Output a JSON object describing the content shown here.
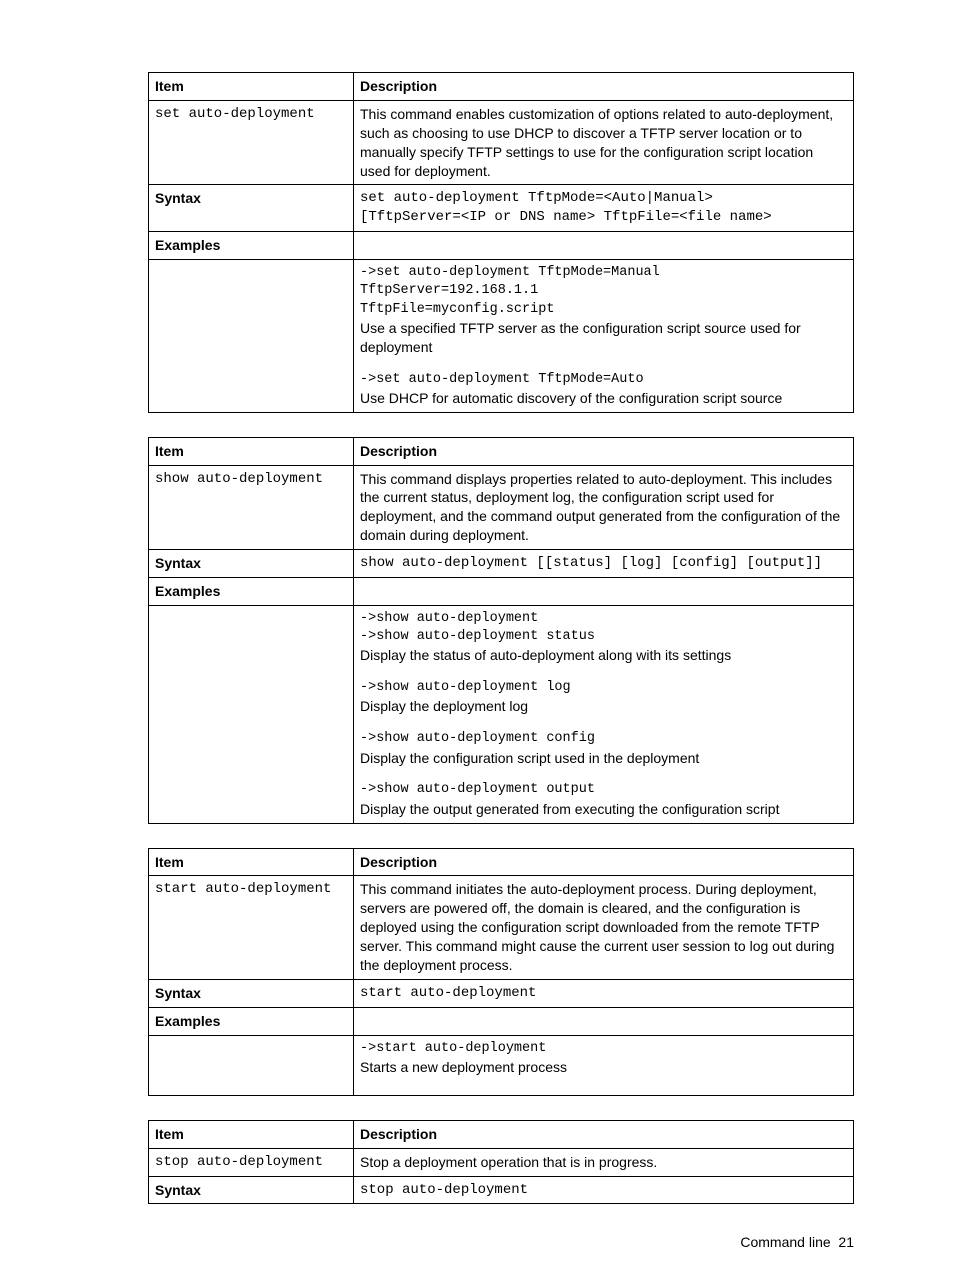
{
  "headers": {
    "item": "Item",
    "description": "Description",
    "syntax": "Syntax",
    "examples": "Examples"
  },
  "table1": {
    "cmd": "set auto-deployment",
    "desc": "This command enables customization of options related to auto-deployment, such as choosing to use DHCP to discover a TFTP server location or to manually specify TFTP settings to use for the configuration script location used for deployment.",
    "syntax1": "set auto-deployment TftpMode=<Auto|Manual>",
    "syntax2": "[TftpServer=<IP or DNS name> TftpFile=<file name>",
    "ex1": "->set auto-deployment TftpMode=Manual",
    "ex2": "TftpServer=192.168.1.1",
    "ex3": "TftpFile=myconfig.script",
    "ex4": "Use a specified TFTP server as the configuration script source used for deployment",
    "ex5": "->set auto-deployment TftpMode=Auto",
    "ex6": "Use DHCP for automatic discovery of the configuration script source"
  },
  "table2": {
    "cmd": "show auto-deployment",
    "desc": "This command displays properties related to auto-deployment. This includes the current status, deployment log, the configuration script used for deployment, and the command output generated from the configuration of the domain during deployment.",
    "syntax": "show auto-deployment [[status] [log] [config] [output]]",
    "ex1": "->show auto-deployment",
    "ex2": "->show auto-deployment status",
    "ex3": "Display the status of auto-deployment along with its settings",
    "ex4": "->show auto-deployment log",
    "ex5": "Display the deployment log",
    "ex6": "->show auto-deployment config",
    "ex7": "Display the configuration script used in the deployment",
    "ex8": "->show auto-deployment output",
    "ex9": "Display the output generated from executing the configuration script"
  },
  "table3": {
    "cmd": "start auto-deployment",
    "desc": "This command initiates the auto-deployment process. During deployment, servers are powered off, the domain is cleared, and the configuration is deployed using the configuration script downloaded from the remote TFTP server. This command might cause the current user session to log out during the deployment process.",
    "syntax": "start auto-deployment",
    "ex1": "->start auto-deployment",
    "ex2": "Starts a new deployment process"
  },
  "table4": {
    "cmd": "stop auto-deployment",
    "desc": "Stop a deployment operation that is in progress.",
    "syntax": "stop auto-deployment"
  },
  "footer": {
    "label": "Command line",
    "page": "21"
  }
}
